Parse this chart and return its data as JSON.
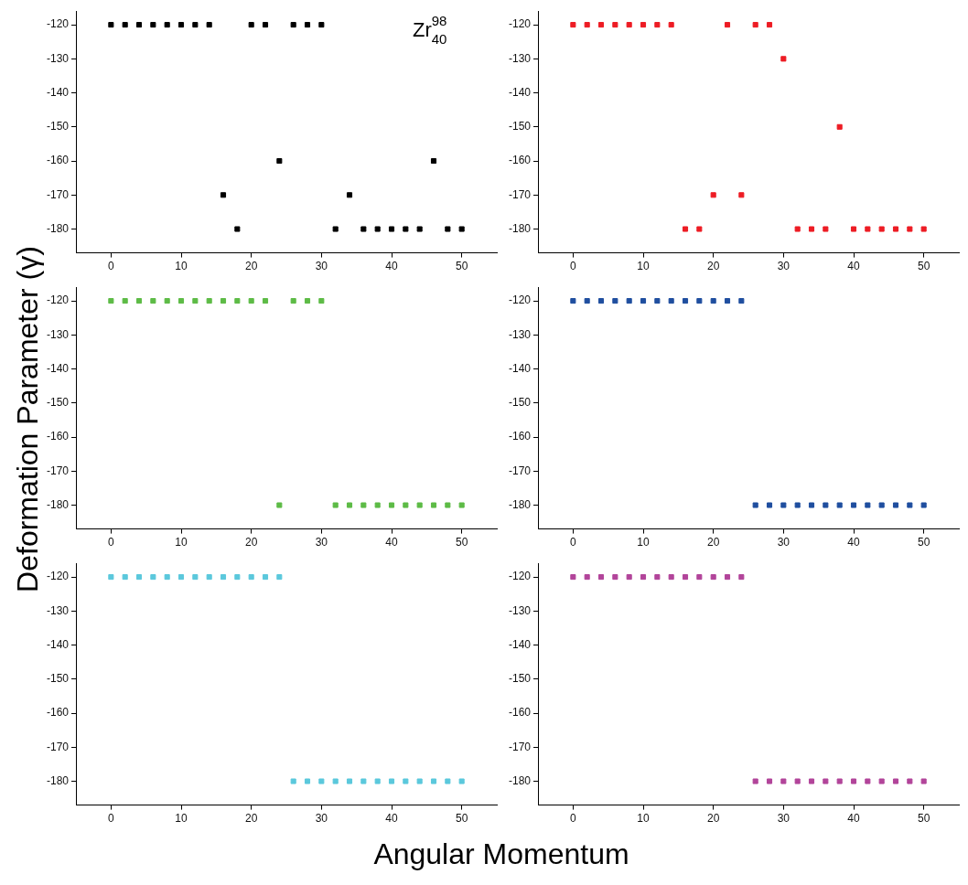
{
  "chart_data": [
    {
      "type": "scatter",
      "ylabel": "Deformation Parameter (γ)",
      "annotations": [
        "Zr$^{98}$$_{40}$"
      ],
      "marker": "square",
      "grid": false,
      "legend": false,
      "xlim": [
        -5,
        55
      ],
      "xticks": [
        0,
        10,
        20,
        30,
        40,
        50
      ],
      "ylim": [
        -187,
        -116
      ],
      "yticks": [
        -180,
        -170,
        -160,
        -150,
        -140,
        -130,
        -120
      ],
      "x": [
        0,
        2,
        4,
        6,
        8,
        10,
        12,
        14,
        16,
        18,
        20,
        22,
        24,
        26,
        28,
        30,
        32,
        34,
        36,
        38,
        40,
        42,
        44,
        46,
        48,
        50
      ],
      "series": [
        {
          "color": "#000000",
          "values": [
            -120,
            -120,
            -120,
            -120,
            -120,
            -120,
            -120,
            -120,
            -170,
            -180,
            -120,
            -120,
            -160,
            -120,
            -120,
            -120,
            -180,
            -170,
            -180,
            -180,
            -180,
            -180,
            -180,
            -160,
            -180,
            -180
          ]
        }
      ]
    },
    {
      "type": "scatter",
      "marker": "square",
      "grid": false,
      "legend": false,
      "xlim": [
        -5,
        55
      ],
      "xticks": [
        0,
        10,
        20,
        30,
        40,
        50
      ],
      "ylim": [
        -187,
        -116
      ],
      "yticks": [
        -180,
        -170,
        -160,
        -150,
        -140,
        -130,
        -120
      ],
      "x": [
        0,
        2,
        4,
        6,
        8,
        10,
        12,
        14,
        16,
        18,
        20,
        22,
        24,
        26,
        28,
        30,
        32,
        34,
        36,
        38,
        40,
        42,
        44,
        46,
        48,
        50
      ],
      "series": [
        {
          "color": "#ed1c24",
          "values": [
            -120,
            -120,
            -120,
            -120,
            -120,
            -120,
            -120,
            -120,
            -180,
            -180,
            -170,
            -120,
            -170,
            -120,
            -120,
            -130,
            -180,
            -180,
            -180,
            -150,
            -180,
            -180,
            -180,
            -180,
            -180,
            -180
          ]
        }
      ]
    },
    {
      "type": "scatter",
      "marker": "square",
      "grid": false,
      "legend": false,
      "xlim": [
        -5,
        55
      ],
      "xticks": [
        0,
        10,
        20,
        30,
        40,
        50
      ],
      "ylim": [
        -187,
        -116
      ],
      "yticks": [
        -180,
        -170,
        -160,
        -150,
        -140,
        -130,
        -120
      ],
      "x": [
        0,
        2,
        4,
        6,
        8,
        10,
        12,
        14,
        16,
        18,
        20,
        22,
        24,
        26,
        28,
        30,
        32,
        34,
        36,
        38,
        40,
        42,
        44,
        46,
        48,
        50
      ],
      "series": [
        {
          "color": "#5dbb46",
          "values": [
            -120,
            -120,
            -120,
            -120,
            -120,
            -120,
            -120,
            -120,
            -120,
            -120,
            -120,
            -120,
            -180,
            -120,
            -120,
            -120,
            -180,
            -180,
            -180,
            -180,
            -180,
            -180,
            -180,
            -180,
            -180,
            -180
          ]
        }
      ]
    },
    {
      "type": "scatter",
      "marker": "square",
      "grid": false,
      "legend": false,
      "xlim": [
        -5,
        55
      ],
      "xticks": [
        0,
        10,
        20,
        30,
        40,
        50
      ],
      "ylim": [
        -187,
        -116
      ],
      "yticks": [
        -180,
        -170,
        -160,
        -150,
        -140,
        -130,
        -120
      ],
      "x": [
        0,
        2,
        4,
        6,
        8,
        10,
        12,
        14,
        16,
        18,
        20,
        22,
        24,
        26,
        28,
        30,
        32,
        34,
        36,
        38,
        40,
        42,
        44,
        46,
        48,
        50
      ],
      "series": [
        {
          "color": "#1f4e9f",
          "values": [
            -120,
            -120,
            -120,
            -120,
            -120,
            -120,
            -120,
            -120,
            -120,
            -120,
            -120,
            -120,
            -120,
            -180,
            -180,
            -180,
            -180,
            -180,
            -180,
            -180,
            -180,
            -180,
            -180,
            -180,
            -180,
            -180
          ]
        }
      ]
    },
    {
      "type": "scatter",
      "xlabel": "Angular Momentum",
      "marker": "square",
      "grid": false,
      "legend": false,
      "xlim": [
        -5,
        55
      ],
      "xticks": [
        0,
        10,
        20,
        30,
        40,
        50
      ],
      "ylim": [
        -187,
        -116
      ],
      "yticks": [
        -180,
        -170,
        -160,
        -150,
        -140,
        -130,
        -120
      ],
      "x": [
        0,
        2,
        4,
        6,
        8,
        10,
        12,
        14,
        16,
        18,
        20,
        22,
        24,
        26,
        28,
        30,
        32,
        34,
        36,
        38,
        40,
        42,
        44,
        46,
        48,
        50
      ],
      "series": [
        {
          "color": "#5bc8dc",
          "values": [
            -120,
            -120,
            -120,
            -120,
            -120,
            -120,
            -120,
            -120,
            -120,
            -120,
            -120,
            -120,
            -120,
            -180,
            -180,
            -180,
            -180,
            -180,
            -180,
            -180,
            -180,
            -180,
            -180,
            -180,
            -180,
            -180
          ]
        }
      ]
    },
    {
      "type": "scatter",
      "marker": "square",
      "grid": false,
      "legend": false,
      "xlim": [
        -5,
        55
      ],
      "xticks": [
        0,
        10,
        20,
        30,
        40,
        50
      ],
      "ylim": [
        -187,
        -116
      ],
      "yticks": [
        -180,
        -170,
        -160,
        -150,
        -140,
        -130,
        -120
      ],
      "x": [
        0,
        2,
        4,
        6,
        8,
        10,
        12,
        14,
        16,
        18,
        20,
        22,
        24,
        26,
        28,
        30,
        32,
        34,
        36,
        38,
        40,
        42,
        44,
        46,
        48,
        50
      ],
      "series": [
        {
          "color": "#b2449a",
          "values": [
            -120,
            -120,
            -120,
            -120,
            -120,
            -120,
            -120,
            -120,
            -120,
            -120,
            -120,
            -120,
            -120,
            -180,
            -180,
            -180,
            -180,
            -180,
            -180,
            -180,
            -180,
            -180,
            -180,
            -180,
            -180,
            -180
          ]
        }
      ]
    }
  ]
}
